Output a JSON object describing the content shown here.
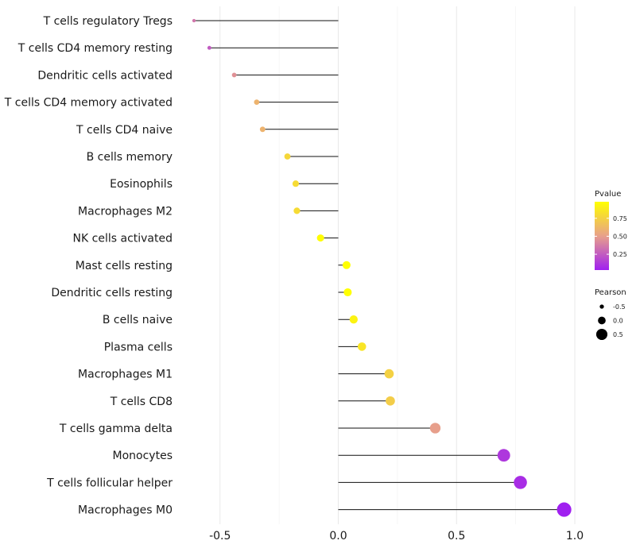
{
  "chart_data": {
    "type": "lollipop",
    "title": "",
    "xlabel": "",
    "ylabel": "",
    "xlim": [
      -0.62,
      1.0
    ],
    "x_ticks": [
      -0.5,
      0.0,
      0.5,
      1.0
    ],
    "x_tick_labels": [
      "-0.5",
      "0.0",
      "0.5",
      "1.0"
    ],
    "grid": true,
    "points": [
      {
        "label": "T cells regulatory  Tregs",
        "value": -0.61,
        "pvalue": 0.35
      },
      {
        "label": "T cells CD4 memory resting",
        "value": -0.545,
        "pvalue": 0.25
      },
      {
        "label": "Dendritic cells activated",
        "value": -0.44,
        "pvalue": 0.45
      },
      {
        "label": "T cells CD4 memory activated",
        "value": -0.345,
        "pvalue": 0.6
      },
      {
        "label": "T cells CD4 naive",
        "value": -0.32,
        "pvalue": 0.6
      },
      {
        "label": "B cells memory",
        "value": -0.215,
        "pvalue": 0.78
      },
      {
        "label": "Eosinophils",
        "value": -0.18,
        "pvalue": 0.8
      },
      {
        "label": "Macrophages M2",
        "value": -0.175,
        "pvalue": 0.8
      },
      {
        "label": "NK cells activated",
        "value": -0.075,
        "pvalue": 0.97
      },
      {
        "label": "Mast cells resting",
        "value": 0.035,
        "pvalue": 0.98
      },
      {
        "label": "Dendritic cells resting",
        "value": 0.04,
        "pvalue": 0.98
      },
      {
        "label": "B cells naive",
        "value": 0.065,
        "pvalue": 0.92
      },
      {
        "label": "Plasma cells",
        "value": 0.1,
        "pvalue": 0.85
      },
      {
        "label": "Macrophages M1",
        "value": 0.215,
        "pvalue": 0.75
      },
      {
        "label": "T cells CD8",
        "value": 0.22,
        "pvalue": 0.73
      },
      {
        "label": "T cells gamma delta",
        "value": 0.41,
        "pvalue": 0.5
      },
      {
        "label": "Monocytes",
        "value": 0.7,
        "pvalue": 0.12
      },
      {
        "label": "T cells follicular helper",
        "value": 0.77,
        "pvalue": 0.08
      },
      {
        "label": "Macrophages M0",
        "value": 0.955,
        "pvalue": 0.03
      }
    ],
    "legend": {
      "placement": "right",
      "color": {
        "title": "Pvalue",
        "ticks": [
          0.25,
          0.5,
          0.75
        ],
        "tick_labels": [
          "0.25",
          "0.50",
          "0.75"
        ],
        "range": [
          0.03,
          0.98
        ],
        "low_color": "#a020f0",
        "mid_color": "#e8a08a",
        "high_color": "#ffff00"
      },
      "size": {
        "title": "Pearson",
        "values": [
          -0.5,
          0.0,
          0.5
        ],
        "labels": [
          "-0.5",
          "0.0",
          "0.5"
        ]
      }
    }
  }
}
